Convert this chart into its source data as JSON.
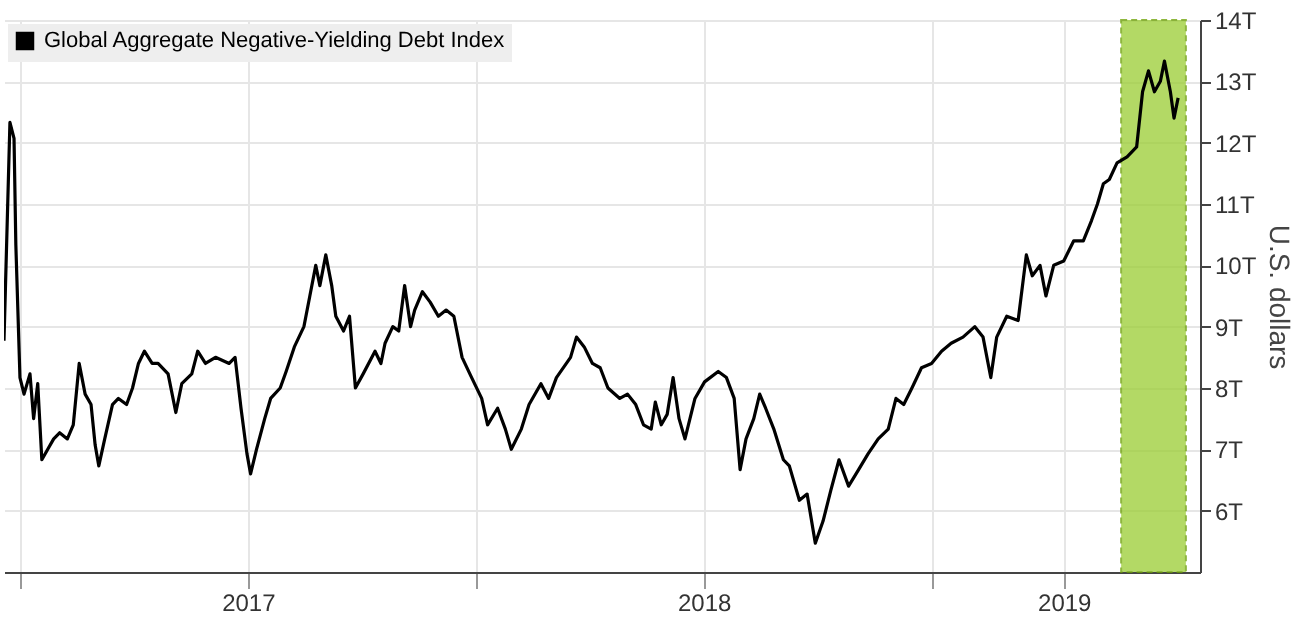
{
  "chart_data": {
    "type": "line",
    "ylabel": "U.S. dollars",
    "legend": "top left",
    "grid": true,
    "marker": "none",
    "line_style": "solid",
    "xlim": [
      2016.965,
      2019.589
    ],
    "ylim": [
      5,
      14
    ],
    "xticks": [
      {
        "value": 2017,
        "label": null
      },
      {
        "value": 2017.5,
        "label": "2017"
      },
      {
        "value": 2018,
        "label": null
      },
      {
        "value": 2018.5,
        "label": "2018"
      },
      {
        "value": 2019,
        "label": null
      },
      {
        "value": 2019.29,
        "label": "2019"
      }
    ],
    "yticks": [
      {
        "value": 6,
        "label": "6T"
      },
      {
        "value": 7,
        "label": "7T"
      },
      {
        "value": 8,
        "label": "8T"
      },
      {
        "value": 9,
        "label": "9T"
      },
      {
        "value": 10,
        "label": "10T"
      },
      {
        "value": 11,
        "label": "11T"
      },
      {
        "value": 12,
        "label": "12T"
      },
      {
        "value": 13,
        "label": "13T"
      },
      {
        "value": 14,
        "label": "14T"
      }
    ],
    "bands": [
      {
        "axis": "x",
        "from": 2019.416,
        "to": 2019.558,
        "color": "#9acd32"
      }
    ],
    "series": [
      {
        "name": "Global Aggregate Negative-Yielding Debt Index",
        "color": "#000000",
        "x": [
          2016.965,
          2016.978,
          2016.987,
          2016.991,
          2017.0,
          2017.009,
          2017.022,
          2017.03,
          2017.039,
          2017.048,
          2017.061,
          2017.074,
          2017.087,
          2017.104,
          2017.117,
          2017.13,
          2017.143,
          2017.156,
          2017.165,
          2017.173,
          2017.186,
          2017.203,
          2017.216,
          2017.234,
          2017.247,
          2017.26,
          2017.273,
          2017.29,
          2017.303,
          2017.325,
          2017.342,
          2017.355,
          2017.377,
          2017.39,
          2017.407,
          2017.429,
          2017.459,
          2017.472,
          2017.485,
          2017.498,
          2017.506,
          2017.519,
          2017.537,
          2017.55,
          2017.571,
          2017.584,
          2017.602,
          2017.623,
          2017.636,
          2017.649,
          2017.658,
          2017.671,
          2017.684,
          2017.693,
          2017.71,
          2017.723,
          2017.736,
          2017.753,
          2017.779,
          2017.792,
          2017.801,
          2017.818,
          2017.831,
          2017.844,
          2017.857,
          2017.866,
          2017.883,
          2017.9,
          2017.918,
          2017.935,
          2017.952,
          2017.97,
          2017.991,
          2018.013,
          2018.026,
          2018.048,
          2018.065,
          2018.078,
          2018.1,
          2018.117,
          2018.143,
          2018.16,
          2018.177,
          2018.208,
          2018.221,
          2018.238,
          2018.256,
          2018.273,
          2018.29,
          2018.316,
          2018.333,
          2018.351,
          2018.368,
          2018.385,
          2018.394,
          2018.407,
          2018.42,
          2018.433,
          2018.446,
          2018.459,
          2018.481,
          2018.502,
          2018.532,
          2018.55,
          2018.567,
          2018.58,
          2018.593,
          2018.61,
          2018.623,
          2018.636,
          2018.654,
          2018.675,
          2018.688,
          2018.71,
          2018.727,
          2018.745,
          2018.762,
          2018.779,
          2018.797,
          2018.818,
          2018.84,
          2018.861,
          2018.883,
          2018.905,
          2018.922,
          2018.939,
          2018.957,
          2018.978,
          2019.0,
          2019.022,
          2019.043,
          2019.069,
          2019.095,
          2019.113,
          2019.13,
          2019.143,
          2019.165,
          2019.19,
          2019.208,
          2019.221,
          2019.238,
          2019.251,
          2019.268,
          2019.29,
          2019.312,
          2019.333,
          2019.351,
          2019.364,
          2019.377,
          2019.39,
          2019.407,
          2019.429,
          2019.45,
          2019.463,
          2019.476,
          2019.489,
          2019.502,
          2019.511,
          2019.524,
          2019.532,
          2019.541
        ],
        "values": [
          8.77,
          12.33,
          12.07,
          10.33,
          8.17,
          7.9,
          8.23,
          7.5,
          8.07,
          6.83,
          7.0,
          7.17,
          7.27,
          7.17,
          7.4,
          8.4,
          7.9,
          7.73,
          7.07,
          6.73,
          7.17,
          7.73,
          7.83,
          7.73,
          8.0,
          8.4,
          8.6,
          8.4,
          8.4,
          8.23,
          7.6,
          8.07,
          8.23,
          8.6,
          8.4,
          8.5,
          8.4,
          8.5,
          7.67,
          6.93,
          6.6,
          7.0,
          7.5,
          7.83,
          8.0,
          8.27,
          8.67,
          9.0,
          9.5,
          10.0,
          9.67,
          10.17,
          9.67,
          9.17,
          8.93,
          9.17,
          8.0,
          8.23,
          8.6,
          8.4,
          8.73,
          9.0,
          8.93,
          9.67,
          9.0,
          9.27,
          9.57,
          9.4,
          9.17,
          9.27,
          9.17,
          8.5,
          8.17,
          7.83,
          7.4,
          7.67,
          7.33,
          7.0,
          7.33,
          7.73,
          8.07,
          7.83,
          8.17,
          8.5,
          8.83,
          8.67,
          8.4,
          8.33,
          8.0,
          7.83,
          7.9,
          7.73,
          7.4,
          7.33,
          7.77,
          7.4,
          7.57,
          8.17,
          7.5,
          7.17,
          7.83,
          8.1,
          8.27,
          8.17,
          7.83,
          6.67,
          7.17,
          7.5,
          7.9,
          7.67,
          7.33,
          6.83,
          6.73,
          6.17,
          6.27,
          5.47,
          5.83,
          6.33,
          6.83,
          6.4,
          6.67,
          6.93,
          7.17,
          7.33,
          7.83,
          7.73,
          8.0,
          8.33,
          8.4,
          8.6,
          8.73,
          8.83,
          9.0,
          8.83,
          8.17,
          8.83,
          9.17,
          9.1,
          10.17,
          9.83,
          10.0,
          9.5,
          10.0,
          10.07,
          10.4,
          10.4,
          10.73,
          11.0,
          11.33,
          11.4,
          11.67,
          11.77,
          11.93,
          12.83,
          13.17,
          12.83,
          13.0,
          13.33,
          12.83,
          12.4,
          12.73
        ]
      }
    ]
  }
}
